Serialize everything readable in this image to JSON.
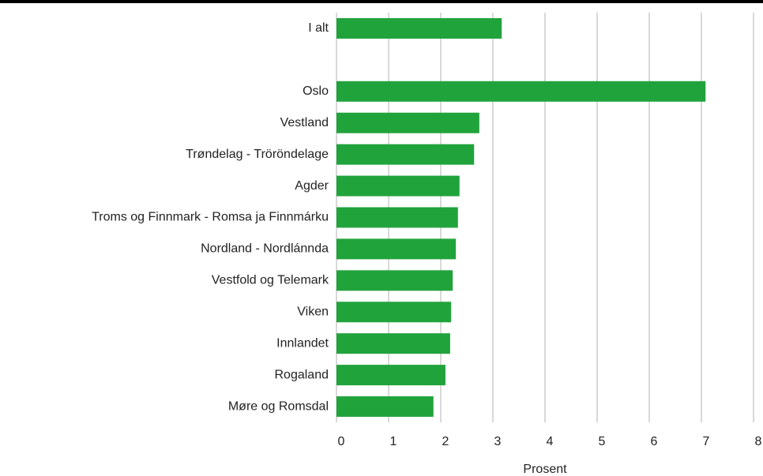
{
  "chart_data": {
    "type": "barh",
    "categories": [
      "I alt",
      null,
      "Oslo",
      "Vestland",
      "Trøndelag - Tröröndelage",
      "Agder",
      "Troms og Finnmark - Romsa ja Finnmárku",
      "Nordland - Nordlánnda",
      "Vestfold og Telemark",
      "Viken",
      "Innlandet",
      "Rogaland",
      "Møre og Romsdal"
    ],
    "values": [
      3.17,
      null,
      7.08,
      2.74,
      2.64,
      2.36,
      2.33,
      2.29,
      2.23,
      2.2,
      2.18,
      2.09,
      1.86
    ],
    "color": "#21a33c",
    "xlabel": "Prosent",
    "xlim": [
      0,
      8
    ],
    "xticks": [
      0,
      1,
      2,
      3,
      4,
      5,
      6,
      7,
      8
    ],
    "grid": true
  }
}
